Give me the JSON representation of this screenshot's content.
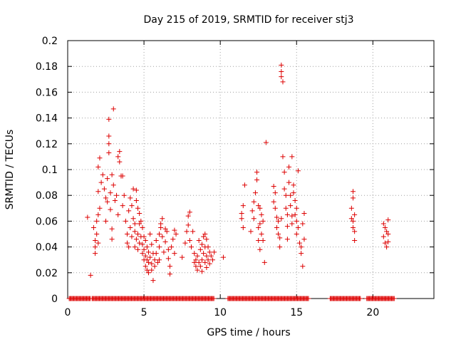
{
  "chart_data": {
    "type": "scatter",
    "title": "Day 215 of 2019, SRMTID for receiver stj3",
    "xlabel": "GPS time / hours",
    "ylabel": "SRMTID / TECUs",
    "xlim": [
      0,
      24
    ],
    "ylim": [
      0,
      0.2
    ],
    "grid": true,
    "marker": "+",
    "color": "#dd0000",
    "x_ticks": [
      0,
      5,
      10,
      15,
      20
    ],
    "x_tick_labels": [
      "0",
      "5",
      "10",
      "15",
      "20"
    ],
    "y_ticks": [
      0,
      0.02,
      0.04,
      0.06,
      0.08,
      0.1,
      0.12,
      0.14,
      0.16,
      0.18,
      0.2
    ],
    "y_tick_labels": [
      "0",
      "0.02",
      "0.04",
      "0.06",
      "0.08",
      "0.1",
      "0.12",
      "0.14",
      "0.16",
      "0.18",
      "0.2"
    ],
    "series": [
      {
        "name": "SRMTID",
        "points": [
          [
            1.3,
            0.063
          ],
          [
            1.5,
            0.018
          ],
          [
            1.7,
            0.055
          ],
          [
            1.8,
            0.045
          ],
          [
            1.8,
            0.04
          ],
          [
            1.8,
            0.035
          ],
          [
            1.9,
            0.06
          ],
          [
            1.9,
            0.05
          ],
          [
            2.0,
            0.065
          ],
          [
            2.0,
            0.043
          ],
          [
            2.0,
            0.083
          ],
          [
            2.0,
            0.102
          ],
          [
            2.1,
            0.109
          ],
          [
            2.1,
            0.07
          ],
          [
            2.2,
            0.09
          ],
          [
            2.3,
            0.096
          ],
          [
            2.4,
            0.085
          ],
          [
            2.5,
            0.078
          ],
          [
            2.5,
            0.06
          ],
          [
            2.6,
            0.093
          ],
          [
            2.6,
            0.075
          ],
          [
            2.7,
            0.113
          ],
          [
            2.7,
            0.12
          ],
          [
            2.7,
            0.126
          ],
          [
            2.7,
            0.139
          ],
          [
            2.8,
            0.082
          ],
          [
            2.8,
            0.069
          ],
          [
            2.9,
            0.096
          ],
          [
            2.9,
            0.054
          ],
          [
            2.9,
            0.046
          ],
          [
            3.0,
            0.147
          ],
          [
            3.0,
            0.088
          ],
          [
            3.1,
            0.076
          ],
          [
            3.2,
            0.08
          ],
          [
            3.3,
            0.065
          ],
          [
            3.3,
            0.11
          ],
          [
            3.4,
            0.114
          ],
          [
            3.4,
            0.106
          ],
          [
            3.5,
            0.095
          ],
          [
            3.6,
            0.095
          ],
          [
            3.6,
            0.072
          ],
          [
            3.7,
            0.08
          ],
          [
            3.8,
            0.06
          ],
          [
            3.9,
            0.05
          ],
          [
            3.9,
            0.043
          ],
          [
            4.0,
            0.068
          ],
          [
            4.0,
            0.04
          ],
          [
            4.1,
            0.055
          ],
          [
            4.1,
            0.078
          ],
          [
            4.2,
            0.072
          ],
          [
            4.2,
            0.048
          ],
          [
            4.3,
            0.085
          ],
          [
            4.3,
            0.062
          ],
          [
            4.4,
            0.058
          ],
          [
            4.4,
            0.052
          ],
          [
            4.4,
            0.04
          ],
          [
            4.5,
            0.084
          ],
          [
            4.5,
            0.076
          ],
          [
            4.5,
            0.046
          ],
          [
            4.6,
            0.07
          ],
          [
            4.6,
            0.05
          ],
          [
            4.6,
            0.038
          ],
          [
            4.7,
            0.066
          ],
          [
            4.7,
            0.058
          ],
          [
            4.7,
            0.043
          ],
          [
            4.8,
            0.06
          ],
          [
            4.8,
            0.048
          ],
          [
            4.9,
            0.055
          ],
          [
            4.9,
            0.042
          ],
          [
            4.9,
            0.035
          ],
          [
            5.0,
            0.048
          ],
          [
            5.0,
            0.038
          ],
          [
            5.0,
            0.03
          ],
          [
            5.1,
            0.045
          ],
          [
            5.1,
            0.033
          ],
          [
            5.1,
            0.025
          ],
          [
            5.2,
            0.04
          ],
          [
            5.2,
            0.03
          ],
          [
            5.2,
            0.022
          ],
          [
            5.3,
            0.036
          ],
          [
            5.3,
            0.028
          ],
          [
            5.3,
            0.02
          ],
          [
            5.4,
            0.05
          ],
          [
            5.4,
            0.032
          ],
          [
            5.5,
            0.042
          ],
          [
            5.5,
            0.027
          ],
          [
            5.5,
            0.022
          ],
          [
            5.6,
            0.014
          ],
          [
            5.6,
            0.035
          ],
          [
            5.7,
            0.03
          ],
          [
            5.7,
            0.025
          ],
          [
            5.8,
            0.045
          ],
          [
            5.8,
            0.035
          ],
          [
            5.9,
            0.028
          ],
          [
            6.0,
            0.05
          ],
          [
            6.0,
            0.04
          ],
          [
            6.0,
            0.03
          ],
          [
            6.1,
            0.058
          ],
          [
            6.1,
            0.055
          ],
          [
            6.2,
            0.062
          ],
          [
            6.2,
            0.048
          ],
          [
            6.3,
            0.036
          ],
          [
            6.4,
            0.054
          ],
          [
            6.4,
            0.044
          ],
          [
            6.5,
            0.052
          ],
          [
            6.6,
            0.038
          ],
          [
            6.6,
            0.031
          ],
          [
            6.7,
            0.025
          ],
          [
            6.7,
            0.019
          ],
          [
            6.8,
            0.04
          ],
          [
            6.9,
            0.046
          ],
          [
            7.0,
            0.053
          ],
          [
            7.0,
            0.035
          ],
          [
            7.1,
            0.05
          ],
          [
            7.5,
            0.032
          ],
          [
            7.7,
            0.043
          ],
          [
            7.8,
            0.052
          ],
          [
            7.9,
            0.057
          ],
          [
            7.9,
            0.064
          ],
          [
            8.0,
            0.067
          ],
          [
            8.0,
            0.045
          ],
          [
            8.1,
            0.04
          ],
          [
            8.2,
            0.052
          ],
          [
            8.3,
            0.035
          ],
          [
            8.3,
            0.028
          ],
          [
            8.4,
            0.025
          ],
          [
            8.4,
            0.03
          ],
          [
            8.5,
            0.022
          ],
          [
            8.5,
            0.033
          ],
          [
            8.6,
            0.045
          ],
          [
            8.6,
            0.028
          ],
          [
            8.7,
            0.038
          ],
          [
            8.7,
            0.025
          ],
          [
            8.8,
            0.042
          ],
          [
            8.8,
            0.03
          ],
          [
            8.8,
            0.021
          ],
          [
            8.9,
            0.048
          ],
          [
            8.9,
            0.035
          ],
          [
            9.0,
            0.04
          ],
          [
            9.0,
            0.028
          ],
          [
            9.0,
            0.05
          ],
          [
            9.1,
            0.046
          ],
          [
            9.1,
            0.033
          ],
          [
            9.1,
            0.024
          ],
          [
            9.2,
            0.04
          ],
          [
            9.2,
            0.03
          ],
          [
            9.3,
            0.036
          ],
          [
            9.3,
            0.027
          ],
          [
            9.4,
            0.033
          ],
          [
            9.5,
            0.03
          ],
          [
            9.6,
            0.036
          ],
          [
            10.2,
            0.032
          ],
          [
            11.4,
            0.066
          ],
          [
            11.4,
            0.062
          ],
          [
            11.5,
            0.072
          ],
          [
            11.5,
            0.055
          ],
          [
            11.6,
            0.088
          ],
          [
            12.0,
            0.052
          ],
          [
            12.1,
            0.068
          ],
          [
            12.2,
            0.075
          ],
          [
            12.2,
            0.062
          ],
          [
            12.3,
            0.082
          ],
          [
            12.4,
            0.098
          ],
          [
            12.4,
            0.092
          ],
          [
            12.5,
            0.072
          ],
          [
            12.5,
            0.055
          ],
          [
            12.5,
            0.045
          ],
          [
            12.6,
            0.07
          ],
          [
            12.6,
            0.058
          ],
          [
            12.6,
            0.038
          ],
          [
            12.7,
            0.065
          ],
          [
            12.7,
            0.05
          ],
          [
            12.8,
            0.06
          ],
          [
            12.8,
            0.045
          ],
          [
            12.9,
            0.028
          ],
          [
            13.0,
            0.121
          ],
          [
            13.5,
            0.087
          ],
          [
            13.5,
            0.075
          ],
          [
            13.6,
            0.082
          ],
          [
            13.6,
            0.07
          ],
          [
            13.7,
            0.063
          ],
          [
            13.7,
            0.055
          ],
          [
            13.8,
            0.06
          ],
          [
            13.8,
            0.05
          ],
          [
            13.9,
            0.047
          ],
          [
            13.9,
            0.04
          ],
          [
            14.0,
            0.062
          ],
          [
            14.0,
            0.181
          ],
          [
            14.0,
            0.176
          ],
          [
            14.0,
            0.172
          ],
          [
            14.1,
            0.168
          ],
          [
            14.1,
            0.11
          ],
          [
            14.2,
            0.098
          ],
          [
            14.2,
            0.085
          ],
          [
            14.3,
            0.08
          ],
          [
            14.3,
            0.07
          ],
          [
            14.4,
            0.065
          ],
          [
            14.4,
            0.056
          ],
          [
            14.4,
            0.046
          ],
          [
            14.5,
            0.102
          ],
          [
            14.5,
            0.09
          ],
          [
            14.6,
            0.08
          ],
          [
            14.6,
            0.072
          ],
          [
            14.7,
            0.064
          ],
          [
            14.7,
            0.058
          ],
          [
            14.7,
            0.11
          ],
          [
            14.8,
            0.088
          ],
          [
            14.8,
            0.082
          ],
          [
            14.9,
            0.076
          ],
          [
            14.9,
            0.065
          ],
          [
            15.0,
            0.07
          ],
          [
            15.0,
            0.06
          ],
          [
            15.0,
            0.05
          ],
          [
            15.1,
            0.099
          ],
          [
            15.1,
            0.055
          ],
          [
            15.2,
            0.043
          ],
          [
            15.3,
            0.04
          ],
          [
            15.3,
            0.035
          ],
          [
            15.4,
            0.025
          ],
          [
            15.4,
            0.058
          ],
          [
            15.5,
            0.066
          ],
          [
            15.5,
            0.046
          ],
          [
            18.6,
            0.07
          ],
          [
            18.6,
            0.062
          ],
          [
            18.7,
            0.083
          ],
          [
            18.7,
            0.078
          ],
          [
            18.7,
            0.06
          ],
          [
            18.7,
            0.055
          ],
          [
            18.8,
            0.065
          ],
          [
            18.8,
            0.052
          ],
          [
            18.8,
            0.045
          ],
          [
            20.7,
            0.058
          ],
          [
            20.7,
            0.048
          ],
          [
            20.8,
            0.055
          ],
          [
            20.8,
            0.043
          ],
          [
            20.9,
            0.052
          ],
          [
            20.9,
            0.04
          ],
          [
            21.0,
            0.061
          ],
          [
            21.0,
            0.05
          ],
          [
            21.0,
            0.044
          ]
        ]
      }
    ],
    "zero_series_x_ranges": [
      [
        0.1,
        1.5
      ],
      [
        1.6,
        9.6
      ],
      [
        10.5,
        15.8
      ],
      [
        17.2,
        19.2
      ],
      [
        19.6,
        21.4
      ]
    ]
  }
}
